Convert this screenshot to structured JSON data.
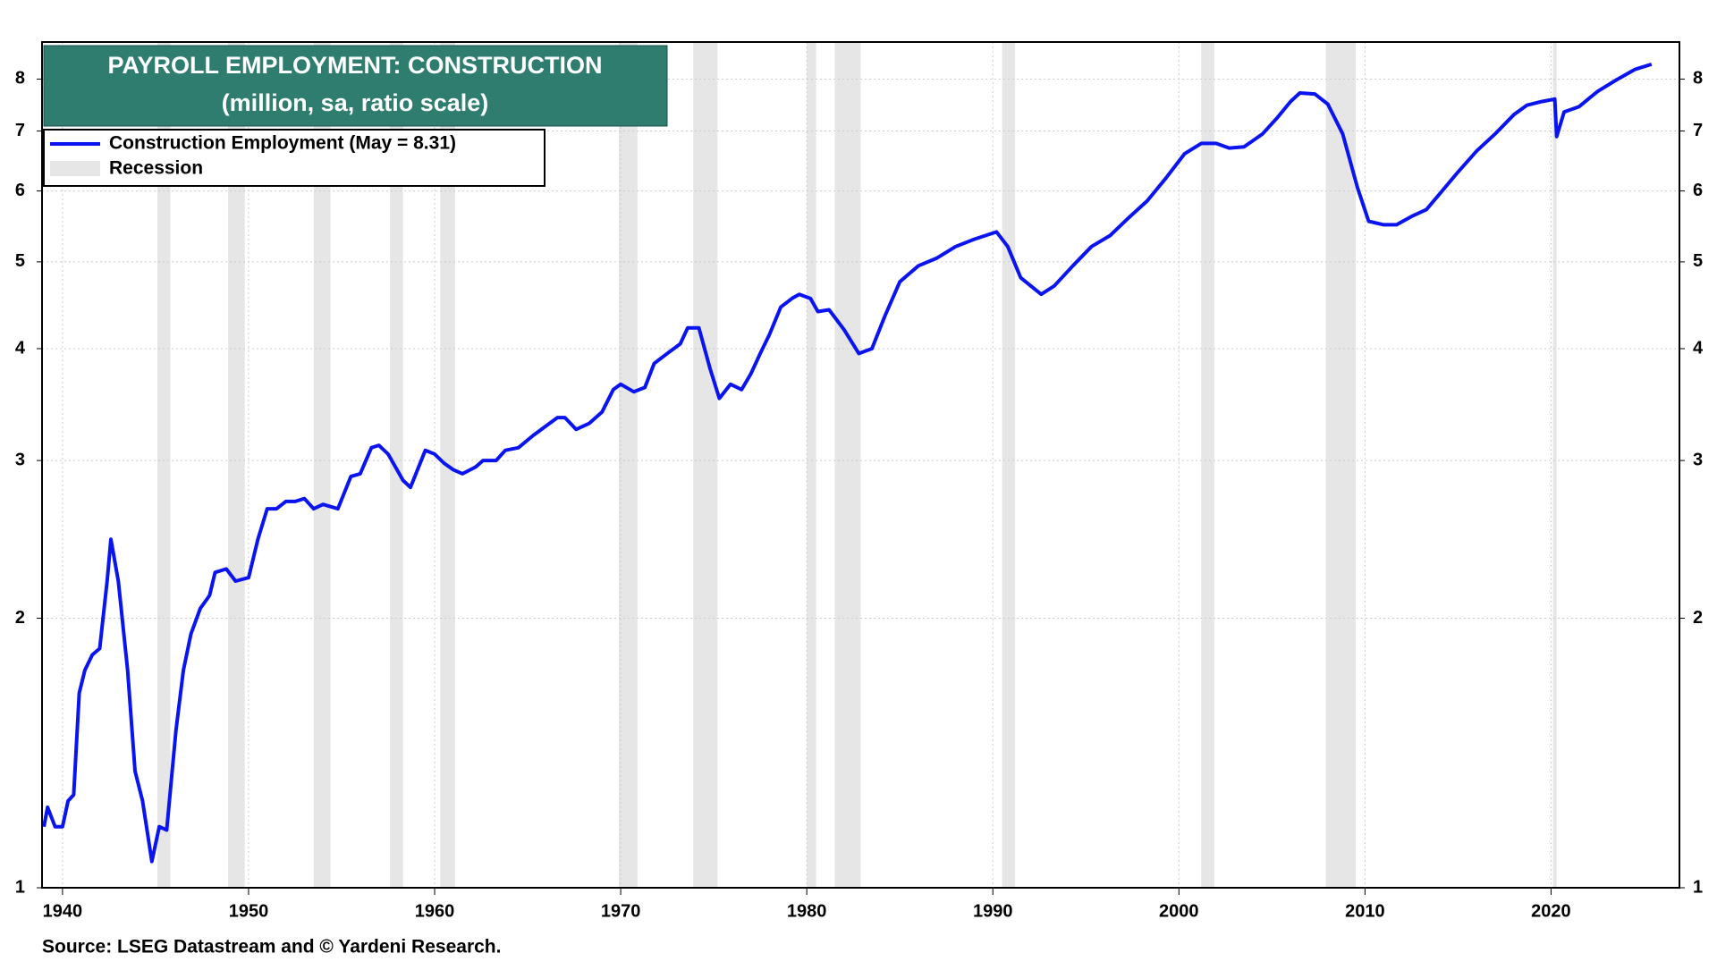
{
  "chart_data": {
    "type": "line",
    "title": "PAYROLL EMPLOYMENT: CONSTRUCTION",
    "subtitle": "(million, sa, ratio scale)",
    "source": "Source: LSEG Datastream and © Yardeni Research.",
    "recession_label": "Recession",
    "log_scale": true,
    "grid": true,
    "legend": "upper left",
    "xlim": [
      1938.9,
      2026.9
    ],
    "xticks": [
      1940,
      1950,
      1960,
      1970,
      1980,
      1990,
      2000,
      2010,
      2020
    ],
    "ylim": [
      1,
      8.8
    ],
    "yticks": [
      1,
      2,
      3,
      4,
      5,
      6,
      7,
      8
    ],
    "recession_color": "#e6e6e6",
    "recessions": [
      [
        1945.1,
        1945.8
      ],
      [
        1948.9,
        1949.8
      ],
      [
        1953.5,
        1954.4
      ],
      [
        1957.6,
        1958.3
      ],
      [
        1960.3,
        1961.1
      ],
      [
        1969.9,
        1970.9
      ],
      [
        1973.9,
        1975.2
      ],
      [
        1980.0,
        1980.5
      ],
      [
        1981.5,
        1982.9
      ],
      [
        1990.5,
        1991.2
      ],
      [
        2001.2,
        2001.9
      ],
      [
        2007.9,
        2009.5
      ],
      [
        2020.1,
        2020.3
      ]
    ],
    "x": [
      1939.0,
      1939.2,
      1939.6,
      1940.0,
      1940.3,
      1940.6,
      1940.9,
      1941.2,
      1941.6,
      1942.0,
      1942.4,
      1942.6,
      1943.0,
      1943.5,
      1943.9,
      1944.3,
      1944.8,
      1945.2,
      1945.6,
      1946.1,
      1946.5,
      1946.9,
      1947.4,
      1947.9,
      1948.2,
      1948.8,
      1949.3,
      1950.0,
      1950.5,
      1951.0,
      1951.5,
      1952.0,
      1952.5,
      1953.0,
      1953.5,
      1954.0,
      1954.8,
      1955.5,
      1956.0,
      1956.6,
      1957.0,
      1957.5,
      1958.3,
      1958.7,
      1959.5,
      1960.0,
      1960.5,
      1961.0,
      1961.5,
      1962.2,
      1962.6,
      1963.3,
      1963.8,
      1964.5,
      1965.3,
      1966.0,
      1966.6,
      1967.0,
      1967.6,
      1968.3,
      1969.0,
      1969.6,
      1970.0,
      1970.7,
      1971.3,
      1971.8,
      1972.5,
      1973.2,
      1973.6,
      1974.2,
      1974.8,
      1975.3,
      1975.9,
      1976.5,
      1977.0,
      1977.5,
      1978.0,
      1978.6,
      1979.2,
      1979.6,
      1980.2,
      1980.6,
      1981.2,
      1982.0,
      1982.8,
      1983.5,
      1984.2,
      1985.0,
      1986.0,
      1987.0,
      1988.0,
      1989.0,
      1990.2,
      1990.8,
      1991.5,
      1992.6,
      1993.3,
      1994.3,
      1995.3,
      1996.3,
      1997.3,
      1998.3,
      1999.3,
      2000.3,
      2001.2,
      2002.0,
      2002.7,
      2003.5,
      2004.5,
      2005.3,
      2006.0,
      2006.5,
      2007.3,
      2008.0,
      2008.8,
      2009.6,
      2010.2,
      2011.0,
      2011.7,
      2012.5,
      2013.3,
      2014.0,
      2015.0,
      2016.0,
      2017.0,
      2018.0,
      2018.7,
      2019.5,
      2020.2,
      2020.3,
      2020.7,
      2021.5,
      2022.5,
      2023.5,
      2024.5,
      2025.4
    ],
    "series": [
      {
        "name": "Construction Employment (May = 8.31)",
        "color": "#0a14f0",
        "values": [
          1.17,
          1.23,
          1.17,
          1.17,
          1.25,
          1.27,
          1.65,
          1.75,
          1.82,
          1.85,
          2.2,
          2.45,
          2.2,
          1.75,
          1.35,
          1.25,
          1.07,
          1.17,
          1.16,
          1.5,
          1.75,
          1.92,
          2.05,
          2.12,
          2.25,
          2.27,
          2.2,
          2.22,
          2.45,
          2.65,
          2.65,
          2.7,
          2.7,
          2.72,
          2.65,
          2.68,
          2.65,
          2.88,
          2.9,
          3.1,
          3.12,
          3.05,
          2.85,
          2.8,
          3.08,
          3.05,
          2.98,
          2.93,
          2.9,
          2.95,
          3.0,
          3.0,
          3.08,
          3.1,
          3.2,
          3.28,
          3.35,
          3.35,
          3.25,
          3.3,
          3.4,
          3.6,
          3.65,
          3.58,
          3.62,
          3.85,
          3.95,
          4.05,
          4.22,
          4.22,
          3.8,
          3.52,
          3.65,
          3.6,
          3.75,
          3.95,
          4.15,
          4.45,
          4.55,
          4.6,
          4.55,
          4.4,
          4.42,
          4.2,
          3.95,
          4.0,
          4.35,
          4.75,
          4.95,
          5.05,
          5.2,
          5.3,
          5.4,
          5.2,
          4.8,
          4.6,
          4.7,
          4.95,
          5.2,
          5.35,
          5.6,
          5.85,
          6.2,
          6.6,
          6.78,
          6.78,
          6.7,
          6.72,
          6.95,
          7.25,
          7.55,
          7.72,
          7.7,
          7.5,
          6.95,
          6.05,
          5.55,
          5.5,
          5.5,
          5.62,
          5.72,
          5.95,
          6.3,
          6.65,
          6.95,
          7.3,
          7.48,
          7.55,
          7.6,
          6.9,
          7.35,
          7.45,
          7.75,
          7.98,
          8.2,
          8.31
        ]
      }
    ]
  }
}
